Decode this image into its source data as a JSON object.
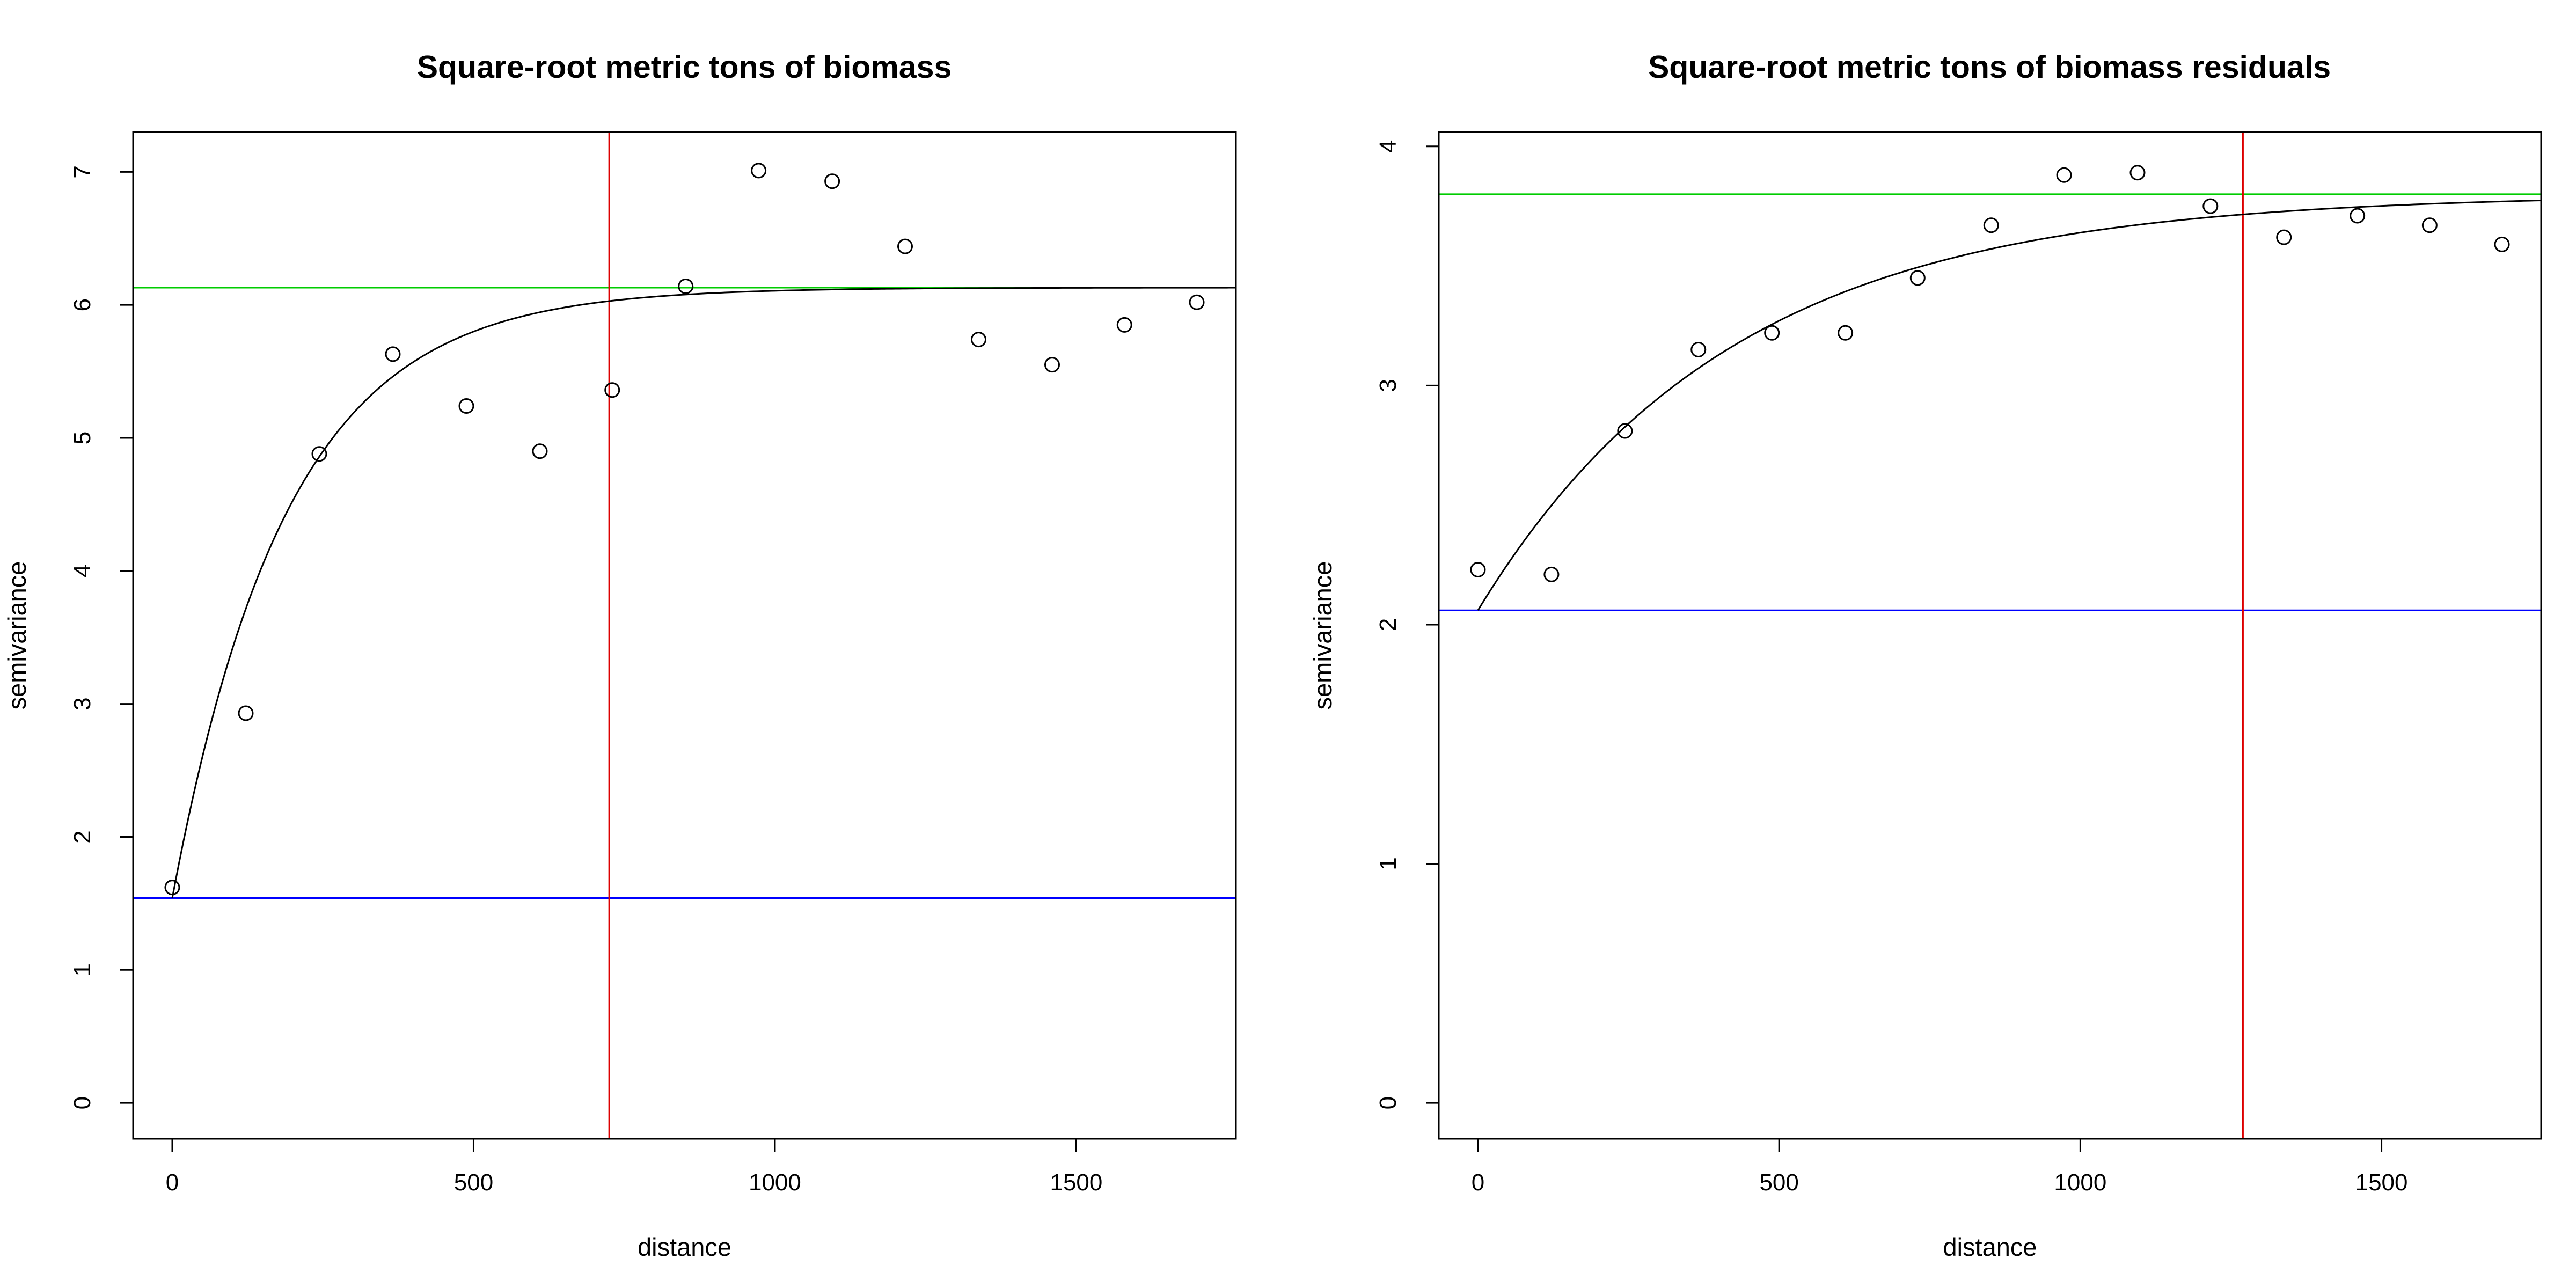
{
  "chart_data": [
    {
      "type": "scatter",
      "title": "Square-root metric tons of biomass",
      "xlabel": "distance",
      "ylabel": "semivariance",
      "xlim": [
        -65,
        1765
      ],
      "ylim": [
        -0.27,
        7.3
      ],
      "xticks": [
        0,
        500,
        1000,
        1500
      ],
      "yticks": [
        0,
        1,
        2,
        3,
        4,
        5,
        6,
        7
      ],
      "points": {
        "x": [
          0,
          122,
          244,
          366,
          488,
          610,
          730,
          852,
          973,
          1095,
          1216,
          1338,
          1460,
          1580,
          1700
        ],
        "y": [
          1.62,
          2.93,
          4.88,
          5.63,
          5.24,
          4.9,
          5.36,
          6.14,
          7.01,
          6.93,
          6.44,
          5.74,
          5.55,
          5.85,
          6.02
        ]
      },
      "fit": {
        "model": "exponential",
        "nugget": 1.54,
        "sill": 6.13,
        "range_param": 190
      },
      "reference_lines": [
        {
          "orientation": "horizontal",
          "value": 6.13,
          "color": "#00cc00"
        },
        {
          "orientation": "horizontal",
          "value": 1.54,
          "color": "#0000ff"
        },
        {
          "orientation": "vertical",
          "value": 725,
          "color": "#dd0000"
        }
      ]
    },
    {
      "type": "scatter",
      "title": "Square-root metric tons of biomass residuals",
      "xlabel": "distance",
      "ylabel": "semivariance",
      "xlim": [
        -65,
        1765
      ],
      "ylim": [
        -0.15,
        4.06
      ],
      "xticks": [
        0,
        500,
        1000,
        1500
      ],
      "yticks": [
        0,
        1,
        2,
        3,
        4
      ],
      "points": {
        "x": [
          0,
          122,
          244,
          366,
          488,
          610,
          730,
          852,
          973,
          1095,
          1216,
          1338,
          1460,
          1580,
          1700
        ],
        "y": [
          2.23,
          2.21,
          2.81,
          3.15,
          3.22,
          3.22,
          3.45,
          3.67,
          3.88,
          3.89,
          3.75,
          3.62,
          3.71,
          3.67,
          3.59
        ]
      },
      "fit": {
        "model": "exponential",
        "nugget": 2.06,
        "sill": 3.8,
        "range_param": 420
      },
      "reference_lines": [
        {
          "orientation": "horizontal",
          "value": 3.8,
          "color": "#00cc00"
        },
        {
          "orientation": "horizontal",
          "value": 2.06,
          "color": "#0000ff"
        },
        {
          "orientation": "vertical",
          "value": 1270,
          "color": "#dd0000"
        }
      ]
    }
  ]
}
